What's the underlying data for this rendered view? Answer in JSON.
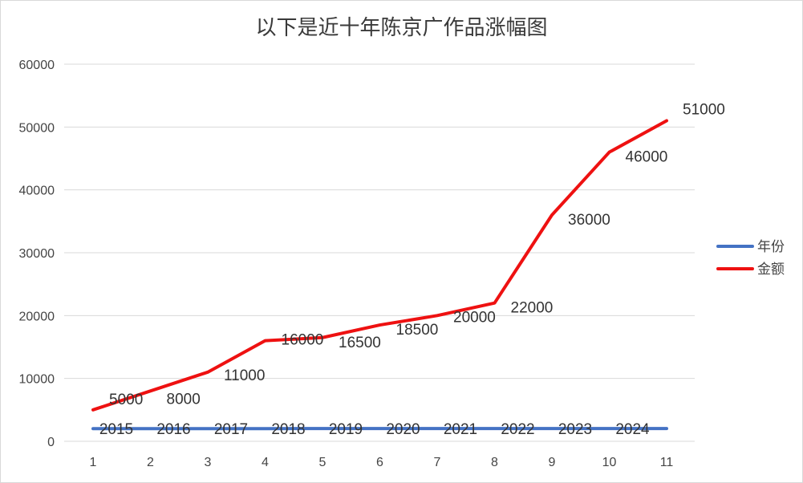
{
  "chart_data": {
    "type": "line",
    "title": "以下是近十年陈京广作品涨幅图",
    "xlabel": "",
    "ylabel": "",
    "categories": [
      "1",
      "2",
      "3",
      "4",
      "5",
      "6",
      "7",
      "8",
      "9",
      "10",
      "11"
    ],
    "ylim": [
      0,
      60000
    ],
    "yticks": [
      "0",
      "10000",
      "20000",
      "30000",
      "40000",
      "50000",
      "60000"
    ],
    "grid": true,
    "legend_position": "right",
    "series": [
      {
        "name": "年份",
        "color": "#4472c4",
        "values": [
          2015,
          2016,
          2017,
          2018,
          2019,
          2020,
          2021,
          2022,
          2023,
          2024,
          2024
        ],
        "labels": [
          "2015",
          "2016",
          "2017",
          "2018",
          "2019",
          "2020",
          "2021",
          "2022",
          "2023",
          "2024",
          ""
        ]
      },
      {
        "name": "金额",
        "color": "#ee1111",
        "values": [
          5000,
          8000,
          11000,
          16000,
          16500,
          18500,
          20000,
          22000,
          36000,
          46000,
          51000
        ],
        "labels": [
          "5000",
          "8000",
          "11000",
          "16000",
          "16500",
          "18500",
          "20000",
          "22000",
          "36000",
          "46000",
          "51000"
        ]
      }
    ]
  }
}
